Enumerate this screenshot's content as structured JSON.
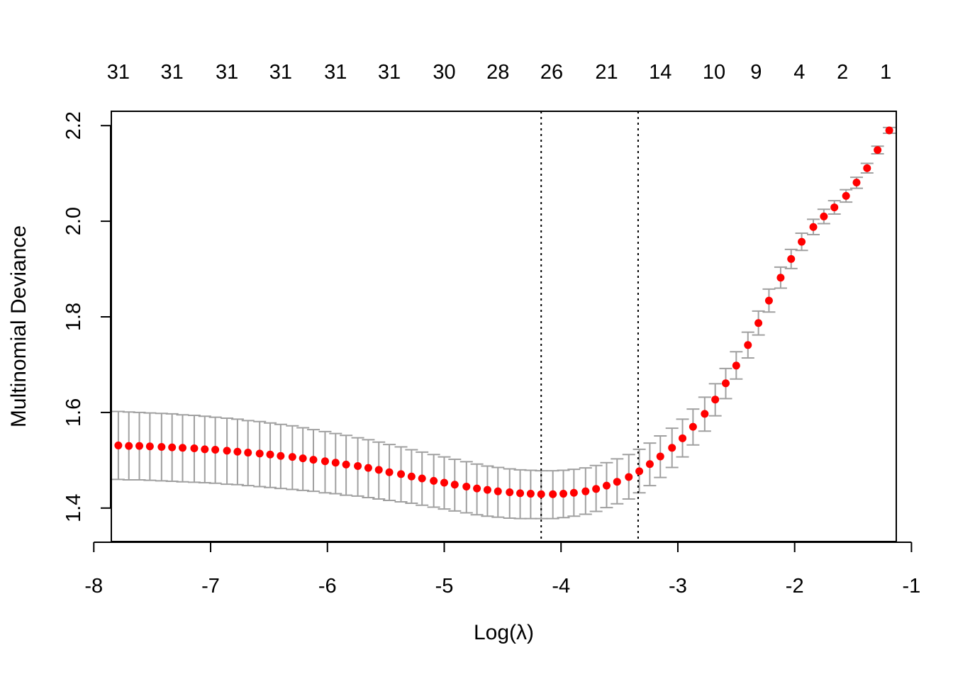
{
  "chart_data": {
    "type": "scatter",
    "xlabel": "Log(λ)",
    "ylabel": "Multinomial Deviance",
    "xlim": [
      -7.85,
      -1.13
    ],
    "ylim": [
      1.33,
      2.23
    ],
    "x_ticks": [
      -8,
      -7,
      -6,
      -5,
      -4,
      -3,
      -2,
      -1
    ],
    "x_tick_labels": [
      "-8",
      "-7",
      "-6",
      "-5",
      "-4",
      "-3",
      "-2",
      "-1"
    ],
    "y_ticks": [
      1.4,
      1.6,
      1.8,
      2.0,
      2.2
    ],
    "y_tick_labels": [
      "1.4",
      "1.6",
      "1.8",
      "2.0",
      "2.2"
    ],
    "top_axis": {
      "x": [
        -7.79,
        -7.33,
        -6.86,
        -6.4,
        -5.93,
        -5.47,
        -5.0,
        -4.54,
        -4.08,
        -3.61,
        -3.15,
        -2.69,
        -2.33,
        -1.96,
        -1.59,
        -1.22
      ],
      "labels": [
        "31",
        "31",
        "31",
        "31",
        "31",
        "31",
        "30",
        "28",
        "26",
        "21",
        "14",
        "10",
        "9",
        "4",
        "2",
        "1"
      ]
    },
    "vlines": [
      -4.17,
      -3.34
    ],
    "point_color": "#ff0000",
    "errorbar_color": "#a0a0a0",
    "series": [
      {
        "x": [
          -7.79,
          -7.7,
          -7.61,
          -7.52,
          -7.42,
          -7.33,
          -7.24,
          -7.14,
          -7.05,
          -6.96,
          -6.86,
          -6.77,
          -6.68,
          -6.58,
          -6.49,
          -6.4,
          -6.3,
          -6.21,
          -6.12,
          -6.02,
          -5.93,
          -5.84,
          -5.74,
          -5.65,
          -5.56,
          -5.47,
          -5.37,
          -5.28,
          -5.19,
          -5.09,
          -5.0,
          -4.91,
          -4.81,
          -4.72,
          -4.63,
          -4.54,
          -4.44,
          -4.35,
          -4.26,
          -4.17,
          -4.07,
          -3.98,
          -3.89,
          -3.79,
          -3.7,
          -3.61,
          -3.52,
          -3.42,
          -3.33,
          -3.24,
          -3.15,
          -3.05,
          -2.96,
          -2.87,
          -2.77,
          -2.68,
          -2.59,
          -2.5,
          -2.4,
          -2.31,
          -2.22,
          -2.12,
          -2.03,
          -1.94,
          -1.84,
          -1.75,
          -1.66,
          -1.56,
          -1.47,
          -1.38,
          -1.29,
          -1.19
        ],
        "y": [
          1.531,
          1.53,
          1.53,
          1.529,
          1.528,
          1.527,
          1.526,
          1.525,
          1.523,
          1.522,
          1.52,
          1.518,
          1.516,
          1.514,
          1.512,
          1.509,
          1.507,
          1.504,
          1.501,
          1.498,
          1.495,
          1.491,
          1.488,
          1.484,
          1.48,
          1.475,
          1.471,
          1.466,
          1.462,
          1.457,
          1.453,
          1.449,
          1.445,
          1.441,
          1.438,
          1.435,
          1.433,
          1.431,
          1.43,
          1.429,
          1.429,
          1.43,
          1.432,
          1.435,
          1.44,
          1.447,
          1.455,
          1.465,
          1.477,
          1.492,
          1.508,
          1.526,
          1.546,
          1.57,
          1.597,
          1.627,
          1.661,
          1.698,
          1.741,
          1.787,
          1.834,
          1.882,
          1.921,
          1.957,
          1.988,
          2.01,
          2.029,
          2.053,
          2.081,
          2.111,
          2.149,
          2.19
        ],
        "upper": [
          1.602,
          1.601,
          1.6,
          1.599,
          1.598,
          1.597,
          1.595,
          1.594,
          1.592,
          1.59,
          1.588,
          1.586,
          1.583,
          1.581,
          1.578,
          1.575,
          1.572,
          1.568,
          1.564,
          1.56,
          1.556,
          1.552,
          1.547,
          1.543,
          1.538,
          1.533,
          1.528,
          1.522,
          1.517,
          1.512,
          1.507,
          1.502,
          1.497,
          1.492,
          1.488,
          1.485,
          1.482,
          1.48,
          1.479,
          1.478,
          1.478,
          1.479,
          1.481,
          1.484,
          1.489,
          1.495,
          1.503,
          1.512,
          1.523,
          1.536,
          1.551,
          1.567,
          1.586,
          1.607,
          1.632,
          1.66,
          1.692,
          1.727,
          1.768,
          1.812,
          1.858,
          1.904,
          1.941,
          1.975,
          2.004,
          2.025,
          2.043,
          2.066,
          2.092,
          2.121,
          2.157,
          2.196
        ],
        "lower": [
          1.46,
          1.459,
          1.459,
          1.458,
          1.457,
          1.456,
          1.455,
          1.454,
          1.453,
          1.452,
          1.45,
          1.449,
          1.447,
          1.445,
          1.443,
          1.441,
          1.439,
          1.437,
          1.435,
          1.432,
          1.43,
          1.427,
          1.425,
          1.422,
          1.419,
          1.416,
          1.413,
          1.41,
          1.406,
          1.402,
          1.398,
          1.394,
          1.39,
          1.386,
          1.383,
          1.381,
          1.379,
          1.378,
          1.378,
          1.378,
          1.378,
          1.38,
          1.383,
          1.387,
          1.393,
          1.401,
          1.409,
          1.419,
          1.432,
          1.447,
          1.464,
          1.485,
          1.507,
          1.532,
          1.561,
          1.593,
          1.629,
          1.67,
          1.714,
          1.762,
          1.81,
          1.86,
          1.901,
          1.939,
          1.972,
          1.995,
          2.015,
          2.04,
          2.069,
          2.101,
          2.141,
          2.184
        ]
      }
    ]
  }
}
